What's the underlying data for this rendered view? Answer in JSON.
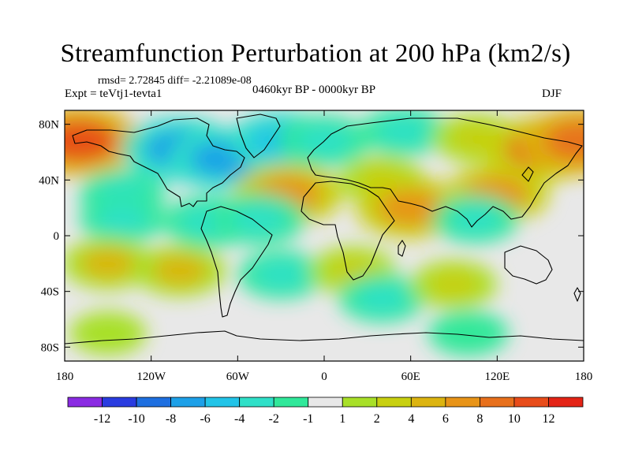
{
  "chart_data": {
    "type": "heatmap",
    "title": "Streamfunction Perturbation at 200 hPa (km2/s)",
    "stats": "rmsd= 2.72845 diff= -2.21089e-08",
    "experiment": "Expt = teVtj1-tevta1",
    "period": "0460kyr BP - 0000kyr BP",
    "season": "DJF",
    "x_ticks": [
      "180",
      "120W",
      "60W",
      "0",
      "60E",
      "120E",
      "180"
    ],
    "x_tick_values": [
      -180,
      -120,
      -60,
      0,
      60,
      120,
      180
    ],
    "y_ticks": [
      "80N",
      "40N",
      "0",
      "40S",
      "80S"
    ],
    "y_tick_values": [
      80,
      40,
      0,
      -40,
      -80
    ],
    "xlim": [
      -180,
      180
    ],
    "ylim": [
      -90,
      90
    ],
    "colorbar_labels": [
      "-12",
      "-10",
      "-8",
      "-6",
      "-4",
      "-2",
      "-1",
      "1",
      "2",
      "4",
      "6",
      "8",
      "10",
      "12"
    ],
    "levels": [
      -14,
      -12,
      -10,
      -8,
      -6,
      -4,
      -2,
      -1,
      1,
      2,
      4,
      6,
      8,
      10,
      12,
      14
    ],
    "colors": [
      "#8a2be2",
      "#2a3ce0",
      "#1e6fe0",
      "#1da0e8",
      "#22c4e8",
      "#2fe0c8",
      "#30e89a",
      "#e8e8e8",
      "#a8e028",
      "#c8d010",
      "#dcb410",
      "#e89418",
      "#e8701c",
      "#e84c1a",
      "#e42416"
    ],
    "features": [
      {
        "lon": -170,
        "lat": 68,
        "value": 10
      },
      {
        "lon": -100,
        "lat": 62,
        "value": -8
      },
      {
        "lon": -70,
        "lat": 55,
        "value": -7
      },
      {
        "lon": -30,
        "lat": 68,
        "value": -6
      },
      {
        "lon": 0,
        "lat": 68,
        "value": -4
      },
      {
        "lon": 55,
        "lat": 75,
        "value": -3
      },
      {
        "lon": 105,
        "lat": 70,
        "value": 3
      },
      {
        "lon": 150,
        "lat": 62,
        "value": 8
      },
      {
        "lon": 178,
        "lat": 68,
        "value": 9
      },
      {
        "lon": -140,
        "lat": 30,
        "value": -3
      },
      {
        "lon": -25,
        "lat": 30,
        "value": 7
      },
      {
        "lon": 40,
        "lat": 40,
        "value": 3
      },
      {
        "lon": 60,
        "lat": 20,
        "value": 7
      },
      {
        "lon": 120,
        "lat": 30,
        "value": 6
      },
      {
        "lon": -140,
        "lat": 12,
        "value": -3
      },
      {
        "lon": -80,
        "lat": 10,
        "value": -4
      },
      {
        "lon": -45,
        "lat": 12,
        "value": -4
      },
      {
        "lon": 105,
        "lat": 12,
        "value": -3
      },
      {
        "lon": -150,
        "lat": -20,
        "value": 4
      },
      {
        "lon": -100,
        "lat": -25,
        "value": 4
      },
      {
        "lon": -30,
        "lat": -28,
        "value": -3
      },
      {
        "lon": 20,
        "lat": -25,
        "value": 3
      },
      {
        "lon": 40,
        "lat": -45,
        "value": -3
      },
      {
        "lon": 90,
        "lat": -35,
        "value": 3
      },
      {
        "lon": 100,
        "lat": -70,
        "value": -2
      },
      {
        "lon": -150,
        "lat": -70,
        "value": 1.5
      }
    ]
  }
}
